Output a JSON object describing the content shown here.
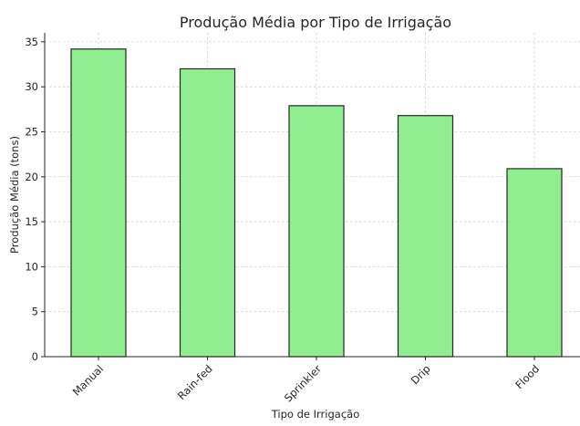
{
  "chart_data": {
    "type": "bar",
    "title": "Produção Média por Tipo de Irrigação",
    "xlabel": "Tipo de Irrigação",
    "ylabel": "Produção Média (tons)",
    "categories": [
      "Manual",
      "Rain-fed",
      "Sprinkler",
      "Drip",
      "Flood"
    ],
    "values": [
      34.2,
      32.0,
      27.9,
      26.8,
      20.9
    ],
    "ylim": [
      0,
      36
    ],
    "yticks": [
      0,
      5,
      10,
      15,
      20,
      25,
      30,
      35
    ],
    "grid": true,
    "bar_color": "#90ee90",
    "edge_color": "#262626"
  }
}
